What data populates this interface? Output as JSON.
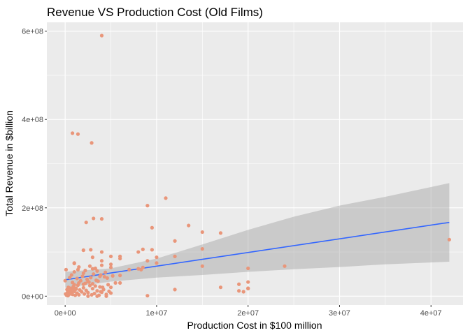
{
  "chart_data": {
    "type": "scatter",
    "title": "Revenue VS Production Cost (Old Films)",
    "xlabel": "Production Cost in $100 million",
    "ylabel": "Total Revenue in $billion",
    "xlim": [
      -2000000,
      43500000
    ],
    "ylim": [
      -20000000,
      620000000
    ],
    "x_ticks": [
      0,
      10000000,
      20000000,
      30000000,
      40000000
    ],
    "x_tick_labels": [
      "0e+00",
      "1e+07",
      "2e+07",
      "3e+07",
      "4e+07"
    ],
    "y_ticks": [
      0,
      200000000,
      400000000,
      600000000
    ],
    "y_tick_labels": [
      "0e+00",
      "2e+08",
      "4e+08",
      "6e+08"
    ],
    "x_minor_ticks": [
      5000000,
      15000000,
      25000000,
      35000000
    ],
    "y_minor_ticks": [
      100000000,
      300000000,
      500000000
    ],
    "grid": true,
    "legend": "none",
    "colors": {
      "points": "#E9967A",
      "trend_line": "#3366FF",
      "ribbon": "#999999",
      "panel_background": "#EBEBEB",
      "grid": "#FFFFFF"
    },
    "series": [
      {
        "x": [
          0,
          50000,
          150000,
          200000,
          250000,
          300000,
          350000,
          400000,
          450000,
          500000,
          600000,
          700000,
          800000,
          900000,
          1000000,
          1100000,
          1200000,
          1300000,
          1400000,
          1500000,
          1600000,
          1800000,
          2000000,
          2100000,
          2300000,
          2500000,
          2700000,
          2900000,
          3000000,
          3200000,
          3500000,
          3700000,
          3800000,
          4000000,
          4200000,
          4500000,
          4800000,
          5000000,
          1500000,
          2000000,
          2500000,
          3000000,
          800000,
          1000000,
          1200000,
          1700000,
          2200000,
          2600000,
          3300000,
          3600000,
          4100000,
          4700000,
          5500000,
          300000,
          600000,
          900000,
          1300000,
          1900000,
          2400000,
          2800000,
          3100000,
          3400000,
          3900000,
          4300000,
          4600000,
          5200000,
          6000000,
          1000000,
          1400000,
          2000000,
          2700000,
          3000000,
          3500000,
          4000000,
          5000000,
          5000000,
          100000,
          500000,
          700000,
          1500000,
          2200000,
          3300000,
          4400000,
          6000000,
          3000000,
          4000000,
          2000000,
          5000000,
          1000000,
          2800000,
          4000000,
          6000000,
          3500000,
          2500000,
          4500000,
          5000000,
          6000000,
          7000000,
          8000000,
          8500000,
          9000000,
          9500000,
          10000000,
          12000000,
          13500000,
          15000000,
          15000000,
          17000000,
          20000000,
          20000000,
          24000000,
          15000000,
          12000000,
          12000000,
          10000000,
          9500000,
          9000000,
          11000000,
          9000000,
          8500000,
          8000000,
          8300000,
          4000000,
          800000,
          1400000,
          2900000,
          3100000,
          4000000,
          2300000,
          2000000,
          1000000,
          3800000,
          3900000,
          17000000,
          19000000,
          19500000,
          20000000,
          19000000,
          20000000,
          42000000
        ],
        "y": [
          35000000,
          5000000,
          2000000,
          15000000,
          8000000,
          1000000,
          20000000,
          3000000,
          12000000,
          6000000,
          18000000,
          9000000,
          4000000,
          22000000,
          11000000,
          2000000,
          16000000,
          7000000,
          25000000,
          3000000,
          14000000,
          10000000,
          19000000,
          5000000,
          13000000,
          8000000,
          24000000,
          3000000,
          17000000,
          6000000,
          12000000,
          2000000,
          21000000,
          9000000,
          15000000,
          4000000,
          11000000,
          7000000,
          30000000,
          27000000,
          33000000,
          28000000,
          31000000,
          26000000,
          18000000,
          35000000,
          29000000,
          32000000,
          23000000,
          34000000,
          20000000,
          26000000,
          30000000,
          10000000,
          14000000,
          16000000,
          40000000,
          45000000,
          38000000,
          42000000,
          50000000,
          36000000,
          48000000,
          44000000,
          41000000,
          46000000,
          47000000,
          55000000,
          60000000,
          52000000,
          68000000,
          62000000,
          57000000,
          70000000,
          65000000,
          72000000,
          60000000,
          42000000,
          48000000,
          66000000,
          58000000,
          63000000,
          54000000,
          85000000,
          88000000,
          80000000,
          104000000,
          90000000,
          75000000,
          105000000,
          100000000,
          90000000,
          0,
          0,
          0,
          20000000,
          30000000,
          60000000,
          100000000,
          65000000,
          1000000,
          105000000,
          88000000,
          125000000,
          160000000,
          145000000,
          68000000,
          143000000,
          63000000,
          32000000,
          68000000,
          107000000,
          15000000,
          90000000,
          75000000,
          155000000,
          205000000,
          222000000,
          80000000,
          106000000,
          62000000,
          60000000,
          590000000,
          369000000,
          367000000,
          347000000,
          176000000,
          175000000,
          167000000,
          104000000,
          74000000,
          45000000,
          10000000,
          20000000,
          27000000,
          10000000,
          18000000,
          12000000,
          17000000,
          128000000
        ]
      }
    ],
    "trend_line": {
      "x": [
        0,
        42000000
      ],
      "y": [
        37000000,
        167000000
      ]
    },
    "confidence_band": {
      "x": [
        0,
        5000000,
        10000000,
        15000000,
        20000000,
        25000000,
        30000000,
        35000000,
        42000000
      ],
      "upper": [
        55000000,
        63000000,
        85000000,
        117000000,
        150000000,
        180000000,
        205000000,
        225000000,
        256000000
      ],
      "lower": [
        19000000,
        33000000,
        42000000,
        48000000,
        55000000,
        61000000,
        66000000,
        72000000,
        78000000
      ]
    }
  }
}
